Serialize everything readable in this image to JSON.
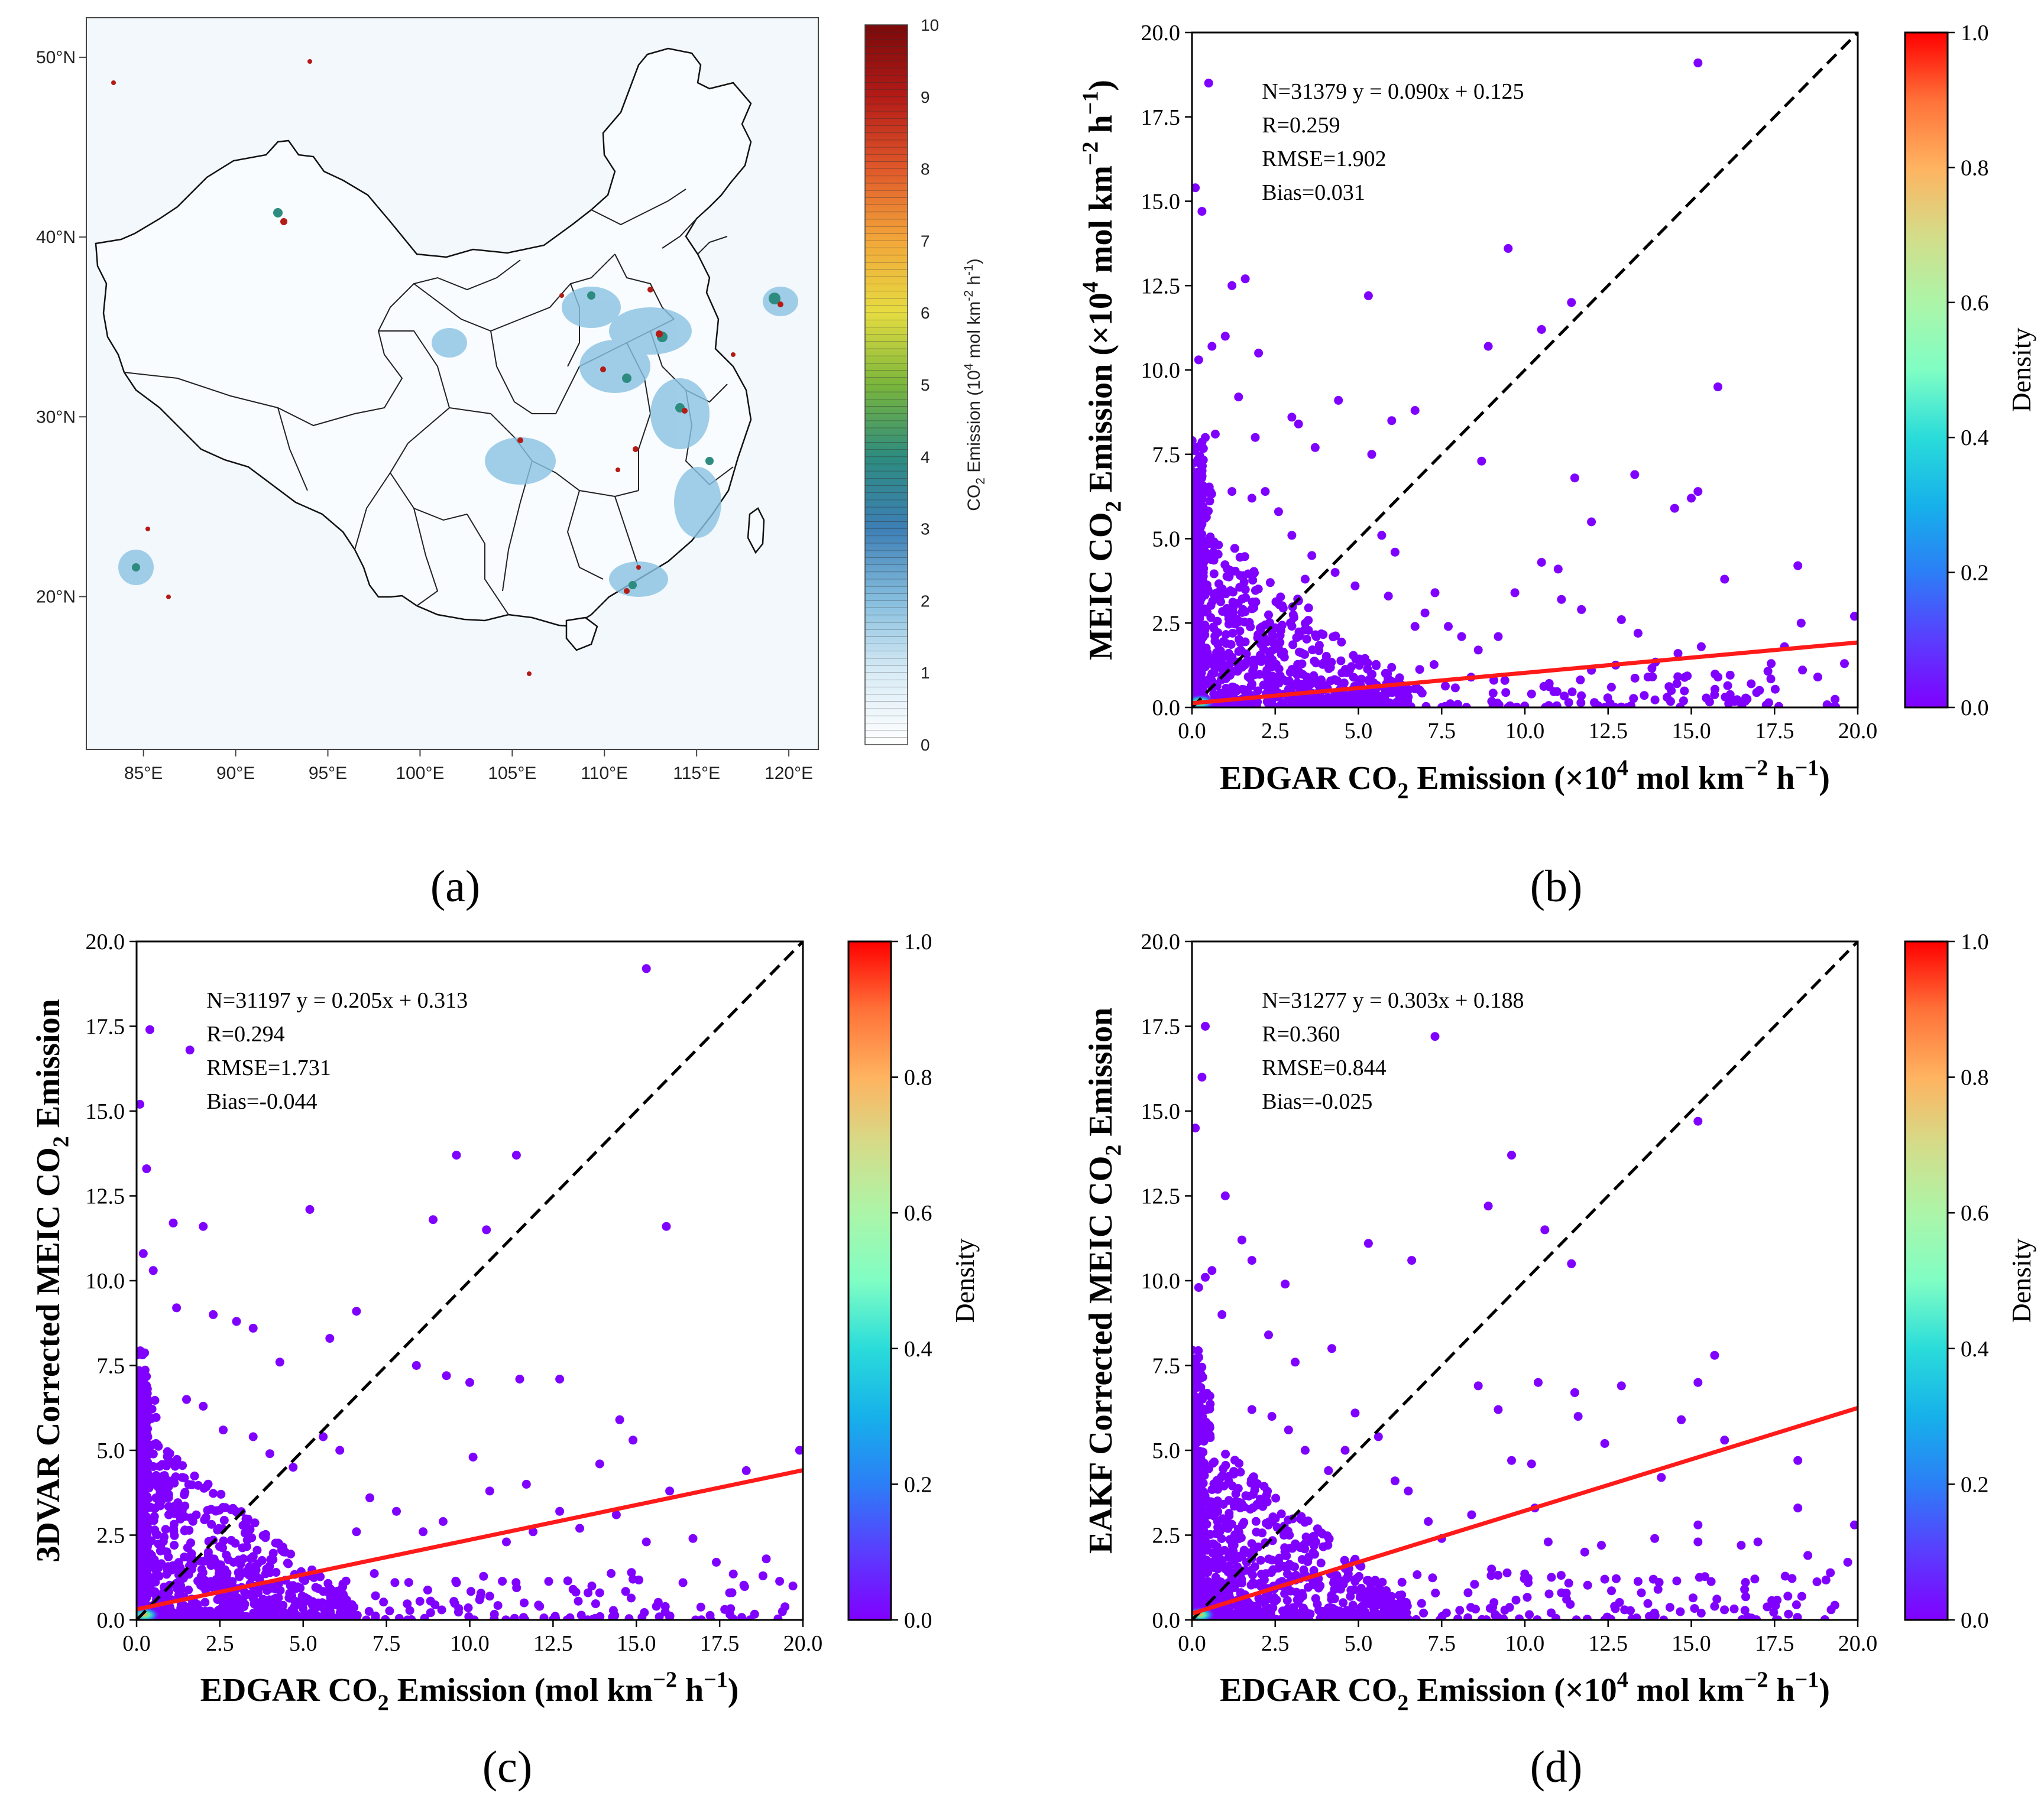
{
  "colors": {
    "scatter_point": "#8000ff",
    "fit_line": "#ff1a1a",
    "identity_line": "#000000",
    "land": "#f6fbfd",
    "ocean": "#f2f8fb"
  },
  "chart_data": [
    {
      "panel": "a",
      "type": "heatmap",
      "panel_label": "(a)",
      "description_kind": "map of gridded CO2 emission over China",
      "colorbar": {
        "label": "CO2 Emission (10^4 mol km^-2 h^-1)",
        "label_parts": {
          "pre": "CO",
          "sub": "2",
          "mid": " Emission (10",
          "sup1": "4",
          "mid2": " mol km",
          "sup2": "-2",
          "mid3": " h",
          "sup3": "-1",
          "post": ")"
        },
        "ticks": [
          "0",
          "1",
          "2",
          "3",
          "4",
          "5",
          "6",
          "7",
          "8",
          "9",
          "10"
        ],
        "range": [
          0,
          10
        ]
      },
      "x_ticks": [
        "85°E",
        "90°E",
        "95°E",
        "100°E",
        "105°E",
        "110°E",
        "115°E",
        "120°E"
      ],
      "x_tick_values": [
        85,
        90,
        95,
        100,
        105,
        110,
        115,
        120
      ],
      "x_range": [
        81.9,
        121.6
      ],
      "y_ticks": [
        "20°N",
        "30°N",
        "40°N",
        "50°N"
      ],
      "y_tick_values": [
        20,
        30,
        40,
        50
      ],
      "y_range": [
        11.5,
        52.2
      ]
    },
    {
      "panel": "b",
      "type": "scatter",
      "panel_label": "(b)",
      "xlabel": {
        "pre": "EDGAR CO",
        "sub": "2",
        "mid": " Emission (×10",
        "sup1": "4",
        "mid2": " mol km",
        "sup2": "−2",
        "mid3": " h",
        "sup3": "−1",
        "post": ")"
      },
      "ylabel": {
        "pre": "MEIC CO",
        "sub": "2",
        "mid": " Emission (×10",
        "sup1": "4",
        "mid2": " mol km",
        "sup2": "−2",
        "mid3": " h",
        "sup3": "−1",
        "post": ")"
      },
      "stats": [
        "N=31379  y = 0.090x + 0.125",
        "R=0.259",
        "RMSE=1.902",
        "Bias=0.031"
      ],
      "fit": {
        "slope": 0.09,
        "intercept": 0.125
      },
      "xlim": [
        0,
        20
      ],
      "ylim": [
        0,
        20
      ],
      "ticks": [
        "0.0",
        "2.5",
        "5.0",
        "7.5",
        "10.0",
        "12.5",
        "15.0",
        "17.5",
        "20.0"
      ],
      "colorbar": {
        "label": "Density",
        "ticks": [
          "0.0",
          "0.2",
          "0.4",
          "0.6",
          "0.8",
          "1.0"
        ],
        "range": [
          0,
          1
        ]
      },
      "outliers": [
        [
          0.5,
          18.5
        ],
        [
          15.2,
          19.1
        ],
        [
          0.1,
          15.4
        ],
        [
          0.3,
          14.7
        ],
        [
          9.5,
          13.6
        ],
        [
          11.4,
          12.0
        ],
        [
          1.2,
          12.5
        ],
        [
          1.6,
          12.7
        ],
        [
          5.3,
          12.2
        ],
        [
          10.5,
          11.2
        ],
        [
          8.9,
          10.7
        ],
        [
          0.2,
          10.3
        ],
        [
          0.6,
          10.7
        ],
        [
          1.0,
          11.0
        ],
        [
          2.0,
          10.5
        ],
        [
          15.8,
          9.5
        ],
        [
          1.4,
          9.2
        ],
        [
          0.4,
          8.0
        ],
        [
          0.7,
          8.1
        ],
        [
          1.9,
          8.0
        ],
        [
          6.0,
          8.5
        ],
        [
          6.7,
          8.8
        ],
        [
          4.4,
          9.1
        ],
        [
          3.0,
          8.6
        ],
        [
          3.2,
          8.4
        ],
        [
          3.7,
          7.7
        ],
        [
          5.4,
          7.5
        ],
        [
          8.7,
          7.3
        ],
        [
          11.5,
          6.8
        ],
        [
          13.3,
          6.9
        ],
        [
          14.5,
          5.9
        ],
        [
          15.0,
          6.2
        ],
        [
          15.2,
          6.4
        ],
        [
          10.5,
          4.3
        ],
        [
          11.0,
          4.1
        ],
        [
          12.0,
          5.5
        ],
        [
          16.0,
          3.8
        ],
        [
          18.2,
          4.2
        ],
        [
          19.9,
          2.7
        ],
        [
          18.3,
          2.5
        ],
        [
          19.6,
          1.3
        ],
        [
          17.8,
          1.8
        ],
        [
          15.3,
          1.8
        ],
        [
          13.4,
          2.2
        ],
        [
          12.9,
          2.6
        ],
        [
          11.7,
          2.9
        ],
        [
          11.1,
          3.2
        ],
        [
          9.7,
          3.4
        ],
        [
          9.2,
          2.1
        ],
        [
          8.6,
          1.7
        ],
        [
          8.1,
          2.1
        ],
        [
          7.7,
          2.4
        ],
        [
          7.3,
          3.4
        ],
        [
          7.0,
          2.8
        ],
        [
          6.7,
          2.4
        ],
        [
          6.1,
          4.6
        ],
        [
          5.7,
          5.1
        ],
        [
          5.9,
          3.3
        ],
        [
          4.9,
          3.6
        ],
        [
          4.3,
          4.0
        ],
        [
          3.6,
          4.5
        ],
        [
          3.4,
          3.8
        ],
        [
          3.0,
          5.1
        ],
        [
          2.6,
          5.8
        ],
        [
          2.2,
          6.4
        ],
        [
          1.8,
          6.2
        ],
        [
          1.2,
          6.4
        ],
        [
          12.6,
          0.6
        ],
        [
          10.2,
          0.4
        ],
        [
          9.4,
          0.8
        ],
        [
          14.4,
          0.5
        ],
        [
          16.8,
          0.7
        ],
        [
          18.8,
          0.9
        ],
        [
          12.0,
          1.1
        ],
        [
          13.7,
          0.9
        ],
        [
          15.8,
          0.9
        ],
        [
          17.4,
          1.3
        ],
        [
          14.6,
          1.6
        ]
      ]
    },
    {
      "panel": "c",
      "type": "scatter",
      "panel_label": "(c)",
      "xlabel": {
        "pre": "EDGAR CO",
        "sub": "2",
        "mid": " Emission (mol km",
        "sup1": "",
        "mid2": "",
        "sup2": "−2",
        "mid3": " h",
        "sup3": "−1",
        "post": ")"
      },
      "ylabel": {
        "pre": "3DVAR Corrected MEIC CO",
        "sub": "2",
        "mid": " Emission",
        "sup1": "",
        "mid2": "",
        "sup2": "",
        "mid3": "",
        "sup3": "",
        "post": ""
      },
      "stats": [
        "N=31197  y = 0.205x + 0.313",
        "R=0.294",
        "RMSE=1.731",
        "Bias=-0.044"
      ],
      "fit": {
        "slope": 0.205,
        "intercept": 0.313
      },
      "xlim": [
        0,
        20
      ],
      "ylim": [
        0,
        20
      ],
      "ticks": [
        "0.0",
        "2.5",
        "5.0",
        "7.5",
        "10.0",
        "12.5",
        "15.0",
        "17.5",
        "20.0"
      ],
      "colorbar": {
        "label": "Density",
        "ticks": [
          "0.0",
          "0.2",
          "0.4",
          "0.6",
          "0.8",
          "1.0"
        ],
        "range": [
          0,
          1
        ]
      },
      "outliers": [
        [
          15.3,
          19.2
        ],
        [
          0.4,
          17.4
        ],
        [
          1.6,
          16.8
        ],
        [
          0.1,
          15.2
        ],
        [
          0.3,
          13.3
        ],
        [
          9.6,
          13.7
        ],
        [
          11.4,
          13.7
        ],
        [
          5.2,
          12.1
        ],
        [
          8.9,
          11.8
        ],
        [
          10.5,
          11.5
        ],
        [
          15.9,
          11.6
        ],
        [
          1.1,
          11.7
        ],
        [
          2.0,
          11.6
        ],
        [
          0.2,
          10.8
        ],
        [
          0.5,
          10.3
        ],
        [
          1.2,
          9.2
        ],
        [
          2.3,
          9.0
        ],
        [
          3.0,
          8.8
        ],
        [
          3.5,
          8.6
        ],
        [
          6.6,
          9.1
        ],
        [
          5.8,
          8.3
        ],
        [
          4.3,
          7.6
        ],
        [
          8.4,
          7.5
        ],
        [
          9.3,
          7.2
        ],
        [
          11.5,
          7.1
        ],
        [
          12.7,
          7.1
        ],
        [
          10.0,
          7.0
        ],
        [
          14.5,
          5.9
        ],
        [
          14.9,
          5.3
        ],
        [
          13.9,
          4.6
        ],
        [
          11.7,
          4.0
        ],
        [
          10.6,
          3.8
        ],
        [
          10.1,
          4.8
        ],
        [
          16.0,
          3.8
        ],
        [
          18.3,
          4.4
        ],
        [
          19.9,
          5.0
        ],
        [
          19.7,
          1.0
        ],
        [
          18.9,
          1.8
        ],
        [
          17.4,
          1.7
        ],
        [
          16.7,
          2.4
        ],
        [
          15.3,
          2.3
        ],
        [
          14.4,
          3.1
        ],
        [
          13.3,
          2.7
        ],
        [
          12.7,
          3.2
        ],
        [
          11.9,
          2.6
        ],
        [
          11.1,
          2.3
        ],
        [
          9.2,
          2.9
        ],
        [
          8.6,
          2.6
        ],
        [
          7.8,
          3.2
        ],
        [
          7.0,
          3.6
        ],
        [
          6.6,
          2.6
        ],
        [
          6.1,
          5.0
        ],
        [
          5.6,
          5.4
        ],
        [
          4.7,
          4.5
        ],
        [
          4.0,
          4.9
        ],
        [
          3.5,
          5.4
        ],
        [
          2.6,
          5.6
        ],
        [
          2.0,
          6.3
        ],
        [
          1.5,
          6.5
        ],
        [
          9.6,
          1.1
        ],
        [
          10.6,
          0.7
        ],
        [
          12.1,
          0.4
        ],
        [
          13.1,
          0.9
        ],
        [
          13.9,
          0.8
        ],
        [
          14.9,
          1.2
        ],
        [
          16.4,
          1.1
        ],
        [
          17.8,
          0.8
        ],
        [
          18.8,
          1.3
        ],
        [
          15.6,
          0.4
        ]
      ]
    },
    {
      "panel": "d",
      "type": "scatter",
      "panel_label": "(d)",
      "xlabel": {
        "pre": "EDGAR CO",
        "sub": "2",
        "mid": " Emission (×10",
        "sup1": "4",
        "mid2": " mol km",
        "sup2": "−2",
        "mid3": " h",
        "sup3": "−1",
        "post": ")"
      },
      "ylabel": {
        "pre": "EAKF Corrected MEIC CO",
        "sub": "2",
        "mid": " Emission",
        "sup1": "",
        "mid2": "",
        "sup2": "",
        "mid3": "",
        "sup3": "",
        "post": ""
      },
      "stats": [
        "N=31277  y = 0.303x + 0.188",
        "R=0.360",
        "RMSE=0.844",
        "Bias=-0.025"
      ],
      "fit": {
        "slope": 0.303,
        "intercept": 0.188
      },
      "xlim": [
        0,
        20
      ],
      "ylim": [
        0,
        20
      ],
      "ticks": [
        "0.0",
        "2.5",
        "5.0",
        "7.5",
        "10.0",
        "12.5",
        "15.0",
        "17.5",
        "20.0"
      ],
      "colorbar": {
        "label": "Density",
        "ticks": [
          "0.0",
          "0.2",
          "0.4",
          "0.6",
          "0.8",
          "1.0"
        ],
        "range": [
          0,
          1
        ]
      },
      "outliers": [
        [
          0.4,
          17.5
        ],
        [
          7.3,
          17.2
        ],
        [
          0.3,
          16.0
        ],
        [
          0.1,
          14.5
        ],
        [
          15.2,
          14.7
        ],
        [
          9.6,
          13.7
        ],
        [
          1.0,
          12.5
        ],
        [
          8.9,
          12.2
        ],
        [
          10.6,
          11.5
        ],
        [
          11.4,
          10.5
        ],
        [
          5.3,
          11.1
        ],
        [
          6.6,
          10.6
        ],
        [
          1.5,
          11.2
        ],
        [
          1.8,
          10.6
        ],
        [
          0.2,
          9.8
        ],
        [
          0.4,
          10.1
        ],
        [
          0.6,
          10.3
        ],
        [
          2.8,
          9.9
        ],
        [
          0.9,
          9.0
        ],
        [
          2.3,
          8.4
        ],
        [
          4.2,
          8.0
        ],
        [
          3.1,
          7.6
        ],
        [
          8.6,
          6.9
        ],
        [
          9.2,
          6.2
        ],
        [
          10.4,
          7.0
        ],
        [
          11.5,
          6.7
        ],
        [
          12.9,
          6.9
        ],
        [
          15.2,
          7.0
        ],
        [
          15.7,
          7.8
        ],
        [
          14.7,
          5.9
        ],
        [
          11.6,
          6.0
        ],
        [
          12.4,
          5.2
        ],
        [
          10.2,
          4.6
        ],
        [
          9.6,
          4.7
        ],
        [
          14.1,
          4.2
        ],
        [
          16.0,
          5.3
        ],
        [
          18.2,
          4.7
        ],
        [
          19.9,
          2.8
        ],
        [
          19.7,
          1.7
        ],
        [
          18.5,
          1.9
        ],
        [
          18.2,
          3.3
        ],
        [
          17.0,
          2.3
        ],
        [
          16.5,
          2.2
        ],
        [
          15.2,
          2.8
        ],
        [
          15.2,
          2.3
        ],
        [
          13.9,
          2.4
        ],
        [
          12.3,
          2.2
        ],
        [
          11.8,
          2.0
        ],
        [
          10.7,
          2.3
        ],
        [
          10.3,
          3.3
        ],
        [
          8.4,
          3.1
        ],
        [
          7.5,
          2.4
        ],
        [
          7.1,
          2.9
        ],
        [
          6.5,
          3.8
        ],
        [
          6.1,
          4.1
        ],
        [
          5.6,
          5.4
        ],
        [
          4.9,
          6.1
        ],
        [
          4.6,
          5.0
        ],
        [
          4.1,
          4.4
        ],
        [
          3.4,
          5.0
        ],
        [
          2.9,
          5.6
        ],
        [
          2.4,
          6.0
        ],
        [
          1.8,
          6.2
        ],
        [
          16.6,
          0.9
        ],
        [
          15.7,
          0.4
        ],
        [
          14.0,
          0.9
        ],
        [
          13.5,
          0.8
        ],
        [
          12.4,
          1.2
        ],
        [
          11.1,
          0.8
        ],
        [
          10.1,
          1.1
        ],
        [
          9.0,
          1.5
        ],
        [
          17.9,
          0.7
        ],
        [
          19.2,
          0.3
        ]
      ]
    }
  ]
}
